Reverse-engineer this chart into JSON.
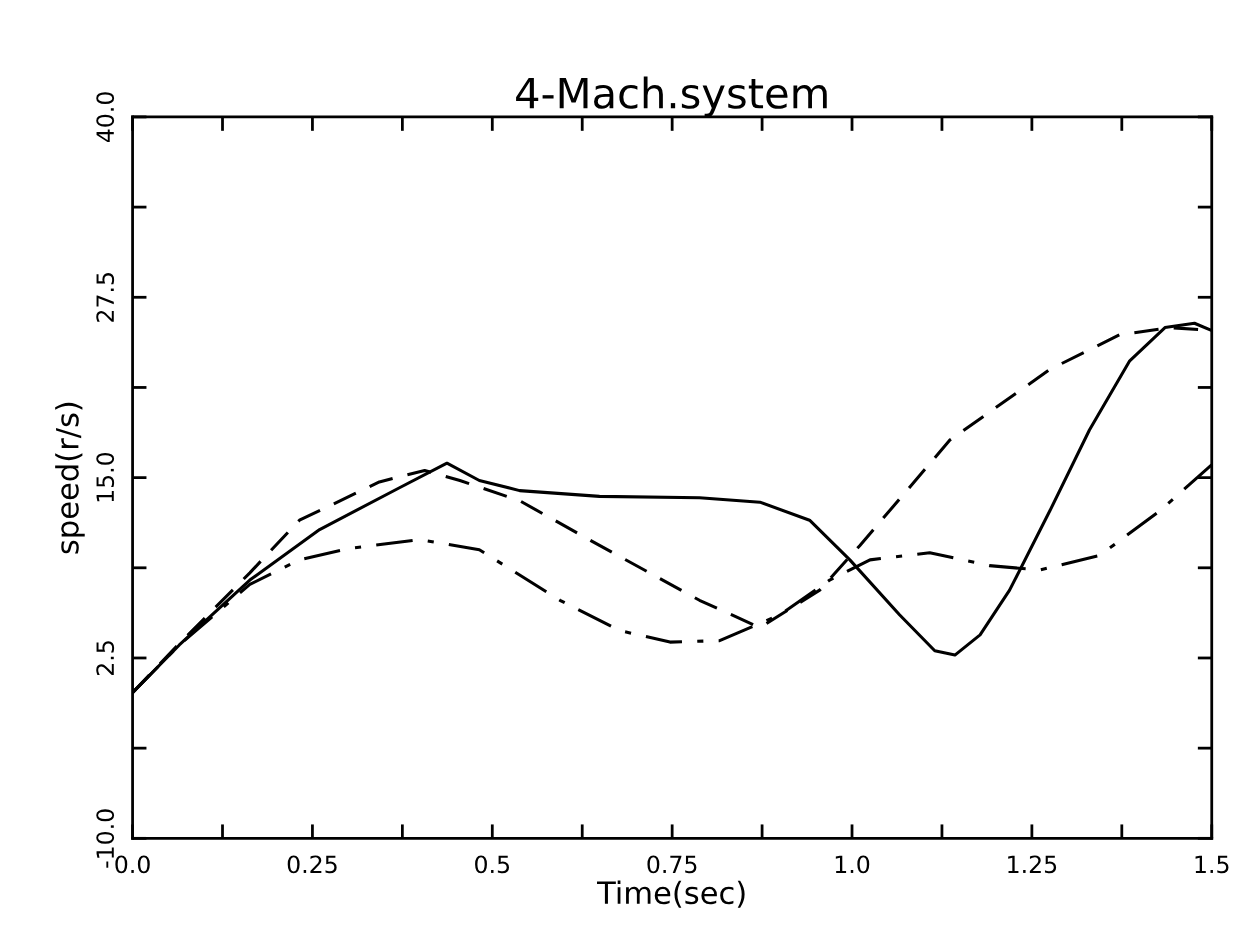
{
  "chart_data": {
    "type": "line",
    "title": "4-Mach.system",
    "xlabel": "Time(sec)",
    "ylabel": "speed(r/s)",
    "xlim": [
      0,
      1.5
    ],
    "ylim": [
      -10,
      40
    ],
    "xticks": [
      {
        "value": 0,
        "label": "0.0"
      },
      {
        "value": 0.125,
        "label": null
      },
      {
        "value": 0.25,
        "label": "0.25"
      },
      {
        "value": 0.375,
        "label": null
      },
      {
        "value": 0.5,
        "label": "0.5"
      },
      {
        "value": 0.625,
        "label": null
      },
      {
        "value": 0.75,
        "label": "0.75"
      },
      {
        "value": 0.875,
        "label": null
      },
      {
        "value": 1.0,
        "label": "1.0"
      },
      {
        "value": 1.125,
        "label": null
      },
      {
        "value": 1.25,
        "label": "1.25"
      },
      {
        "value": 1.375,
        "label": null
      },
      {
        "value": 1.5,
        "label": "1.5"
      }
    ],
    "yticks": [
      {
        "value": -10,
        "label": "-10.0"
      },
      {
        "value": -3.75,
        "label": null
      },
      {
        "value": 2.5,
        "label": "2.5"
      },
      {
        "value": 8.75,
        "label": null
      },
      {
        "value": 15,
        "label": "15.0"
      },
      {
        "value": 21.25,
        "label": null
      },
      {
        "value": 27.5,
        "label": "27.5"
      },
      {
        "value": 33.75,
        "label": null
      },
      {
        "value": 40,
        "label": "40.0"
      }
    ],
    "grid": false,
    "legend": false,
    "marker": "none",
    "series": [
      {
        "color": "#000000",
        "line_style": "solid",
        "x": [
          0,
          0.065,
          0.163,
          0.26,
          0.371,
          0.437,
          0.482,
          0.538,
          0.649,
          0.788,
          0.872,
          0.941,
          0.997,
          1.066,
          1.115,
          1.143,
          1.178,
          1.219,
          1.275,
          1.33,
          1.386,
          1.435,
          1.476,
          1.5
        ],
        "values": [
          0.1,
          3.4,
          7.9,
          11.4,
          14.3,
          16.0,
          14.8,
          14.1,
          13.7,
          13.6,
          13.3,
          12.05,
          9.3,
          5.5,
          3.0,
          2.7,
          4.1,
          7.2,
          12.7,
          18.3,
          23.1,
          25.4,
          25.7,
          25.2
        ]
      },
      {
        "color": "#000000",
        "line_style": "dashed",
        "x": [
          0,
          0.065,
          0.163,
          0.232,
          0.343,
          0.406,
          0.455,
          0.538,
          0.649,
          0.788,
          0.872,
          0.955,
          1.011,
          1.136,
          1.275,
          1.372,
          1.441,
          1.5
        ],
        "values": [
          0.1,
          3.5,
          8.4,
          12.05,
          14.7,
          15.5,
          14.8,
          13.4,
          10.3,
          6.5,
          4.6,
          7.2,
          10.3,
          17.6,
          22.5,
          24.9,
          25.4,
          25.2
        ]
      },
      {
        "color": "#000000",
        "line_style": "dotted",
        "x": [
          0,
          0.065,
          0.163,
          0.232,
          0.302,
          0.399,
          0.482,
          0.594,
          0.677,
          0.747,
          0.816,
          0.9,
          0.969,
          1.025,
          1.108,
          1.191,
          1.261,
          1.344,
          1.428,
          1.5
        ],
        "values": [
          0.1,
          3.4,
          7.6,
          9.3,
          10.1,
          10.7,
          10.0,
          6.5,
          4.4,
          3.6,
          3.7,
          5.5,
          7.9,
          9.3,
          9.8,
          8.9,
          8.6,
          9.6,
          12.7,
          15.9
        ]
      }
    ]
  }
}
